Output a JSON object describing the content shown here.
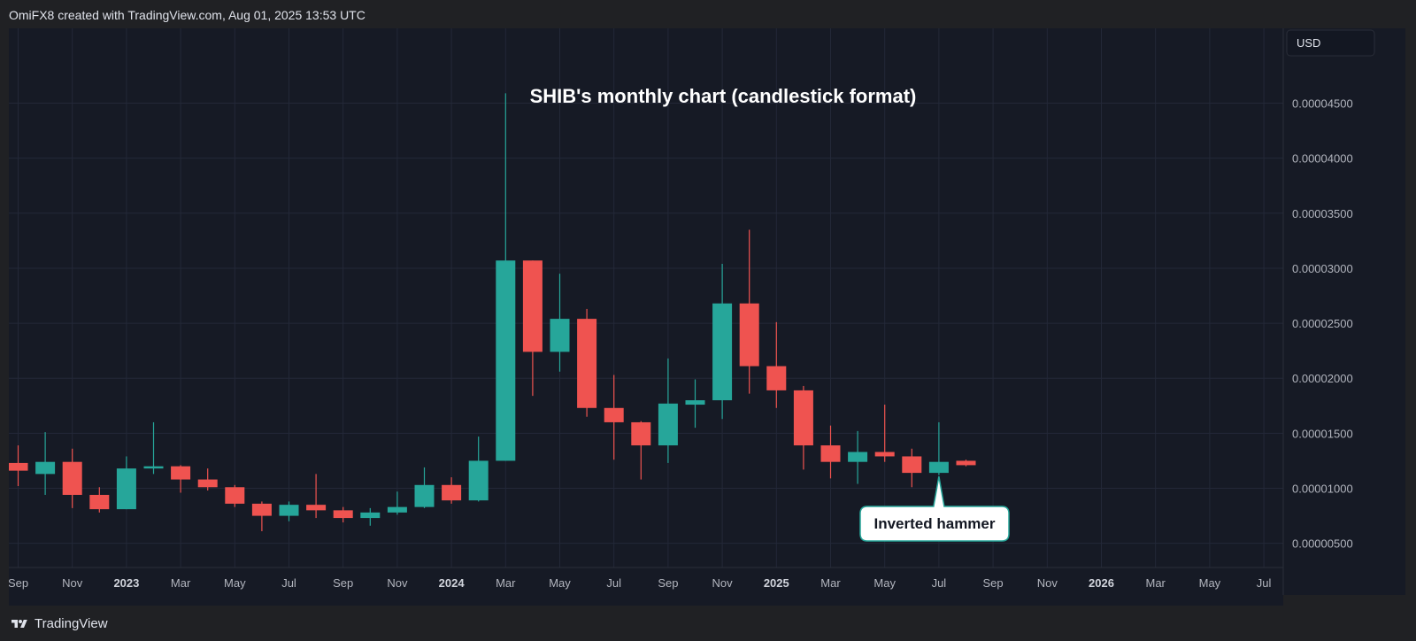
{
  "header": {
    "credit": "OmiFX8 created with TradingView.com, Aug 01, 2025 13:53 UTC"
  },
  "footer": {
    "brand": "TradingView"
  },
  "colors": {
    "background": "#161a25",
    "up": "#26a69a",
    "down": "#ef5350",
    "grid": "#232838",
    "axis_text": "#b2b5be"
  },
  "chart_data": {
    "type": "candlestick",
    "title": "SHIB's monthly chart (candlestick format)",
    "currency_label": "USD",
    "y_ticks": [
      5e-06,
      1e-05,
      1.5e-05,
      2e-05,
      2.5e-05,
      3e-05,
      3.5e-05,
      4e-05,
      4.5e-05
    ],
    "y_tick_labels": [
      "0.00000500",
      "0.00001000",
      "0.00001500",
      "0.00002000",
      "0.00002500",
      "0.00003000",
      "0.00003500",
      "0.00004000",
      "0.00004500"
    ],
    "ylim": [
      2.8e-06,
      5.18e-05
    ],
    "x_ticks": [
      {
        "label": "Sep",
        "bold": false
      },
      {
        "label": "Nov",
        "bold": false
      },
      {
        "label": "2023",
        "bold": true
      },
      {
        "label": "Mar",
        "bold": false
      },
      {
        "label": "May",
        "bold": false
      },
      {
        "label": "Jul",
        "bold": false
      },
      {
        "label": "Sep",
        "bold": false
      },
      {
        "label": "Nov",
        "bold": false
      },
      {
        "label": "2024",
        "bold": true
      },
      {
        "label": "Mar",
        "bold": false
      },
      {
        "label": "May",
        "bold": false
      },
      {
        "label": "Jul",
        "bold": false
      },
      {
        "label": "Sep",
        "bold": false
      },
      {
        "label": "Nov",
        "bold": false
      },
      {
        "label": "2025",
        "bold": true
      },
      {
        "label": "Mar",
        "bold": false
      },
      {
        "label": "May",
        "bold": false
      },
      {
        "label": "Jul",
        "bold": false
      },
      {
        "label": "Sep",
        "bold": false
      },
      {
        "label": "Nov",
        "bold": false
      },
      {
        "label": "2026",
        "bold": true
      },
      {
        "label": "Mar",
        "bold": false
      },
      {
        "label": "May",
        "bold": false
      },
      {
        "label": "Jul",
        "bold": false
      }
    ],
    "candles": [
      {
        "open": 1.23e-05,
        "high": 1.39e-05,
        "low": 1.02e-05,
        "close": 1.16e-05
      },
      {
        "open": 1.13e-05,
        "high": 1.51e-05,
        "low": 9.4e-06,
        "close": 1.24e-05
      },
      {
        "open": 1.24e-05,
        "high": 1.36e-05,
        "low": 8.2e-06,
        "close": 9.4e-06
      },
      {
        "open": 9.4e-06,
        "high": 1.01e-05,
        "low": 7.8e-06,
        "close": 8.1e-06
      },
      {
        "open": 8.1e-06,
        "high": 1.29e-05,
        "low": 8.1e-06,
        "close": 1.18e-05
      },
      {
        "open": 1.18e-05,
        "high": 1.6e-05,
        "low": 1.13e-05,
        "close": 1.2e-05
      },
      {
        "open": 1.2e-05,
        "high": 1.21e-05,
        "low": 9.6e-06,
        "close": 1.08e-05
      },
      {
        "open": 1.08e-05,
        "high": 1.18e-05,
        "low": 9.8e-06,
        "close": 1.01e-05
      },
      {
        "open": 1.01e-05,
        "high": 1.03e-05,
        "low": 8.3e-06,
        "close": 8.6e-06
      },
      {
        "open": 8.6e-06,
        "high": 8.8e-06,
        "low": 6.1e-06,
        "close": 7.5e-06
      },
      {
        "open": 7.5e-06,
        "high": 8.8e-06,
        "low": 7e-06,
        "close": 8.5e-06
      },
      {
        "open": 8.5e-06,
        "high": 1.13e-05,
        "low": 7.3e-06,
        "close": 8e-06
      },
      {
        "open": 8e-06,
        "high": 8.3e-06,
        "low": 6.9e-06,
        "close": 7.3e-06
      },
      {
        "open": 7.3e-06,
        "high": 8.2e-06,
        "low": 6.6e-06,
        "close": 7.8e-06
      },
      {
        "open": 7.8e-06,
        "high": 9.7e-06,
        "low": 7.6e-06,
        "close": 8.3e-06
      },
      {
        "open": 8.3e-06,
        "high": 1.19e-05,
        "low": 8.2e-06,
        "close": 1.03e-05
      },
      {
        "open": 1.03e-05,
        "high": 1.1e-05,
        "low": 8.6e-06,
        "close": 8.9e-06
      },
      {
        "open": 8.9e-06,
        "high": 1.47e-05,
        "low": 8.8e-06,
        "close": 1.25e-05
      },
      {
        "open": 1.25e-05,
        "high": 4.59e-05,
        "low": 1.25e-05,
        "close": 3.07e-05
      },
      {
        "open": 3.07e-05,
        "high": 3.07e-05,
        "low": 1.84e-05,
        "close": 2.24e-05
      },
      {
        "open": 2.24e-05,
        "high": 2.95e-05,
        "low": 2.06e-05,
        "close": 2.54e-05
      },
      {
        "open": 2.54e-05,
        "high": 2.63e-05,
        "low": 1.65e-05,
        "close": 1.73e-05
      },
      {
        "open": 1.73e-05,
        "high": 2.03e-05,
        "low": 1.26e-05,
        "close": 1.6e-05
      },
      {
        "open": 1.6e-05,
        "high": 1.61e-05,
        "low": 1.08e-05,
        "close": 1.39e-05
      },
      {
        "open": 1.39e-05,
        "high": 2.18e-05,
        "low": 1.23e-05,
        "close": 1.77e-05
      },
      {
        "open": 1.76e-05,
        "high": 1.99e-05,
        "low": 1.55e-05,
        "close": 1.8e-05
      },
      {
        "open": 1.8e-05,
        "high": 3.04e-05,
        "low": 1.63e-05,
        "close": 2.68e-05
      },
      {
        "open": 2.68e-05,
        "high": 3.35e-05,
        "low": 1.86e-05,
        "close": 2.11e-05
      },
      {
        "open": 2.11e-05,
        "high": 2.51e-05,
        "low": 1.73e-05,
        "close": 1.89e-05
      },
      {
        "open": 1.89e-05,
        "high": 1.93e-05,
        "low": 1.17e-05,
        "close": 1.39e-05
      },
      {
        "open": 1.39e-05,
        "high": 1.57e-05,
        "low": 1.09e-05,
        "close": 1.24e-05
      },
      {
        "open": 1.24e-05,
        "high": 1.52e-05,
        "low": 1.04e-05,
        "close": 1.33e-05
      },
      {
        "open": 1.33e-05,
        "high": 1.76e-05,
        "low": 1.24e-05,
        "close": 1.29e-05
      },
      {
        "open": 1.29e-05,
        "high": 1.36e-05,
        "low": 1.01e-05,
        "close": 1.14e-05
      },
      {
        "open": 1.14e-05,
        "high": 1.6e-05,
        "low": 1.12e-05,
        "close": 1.24e-05
      },
      {
        "open": 1.25e-05,
        "high": 1.26e-05,
        "low": 1.2e-05,
        "close": 1.21e-05
      }
    ],
    "annotation": {
      "text": "Inverted hammer",
      "candle_index": 34
    },
    "grid": true
  }
}
